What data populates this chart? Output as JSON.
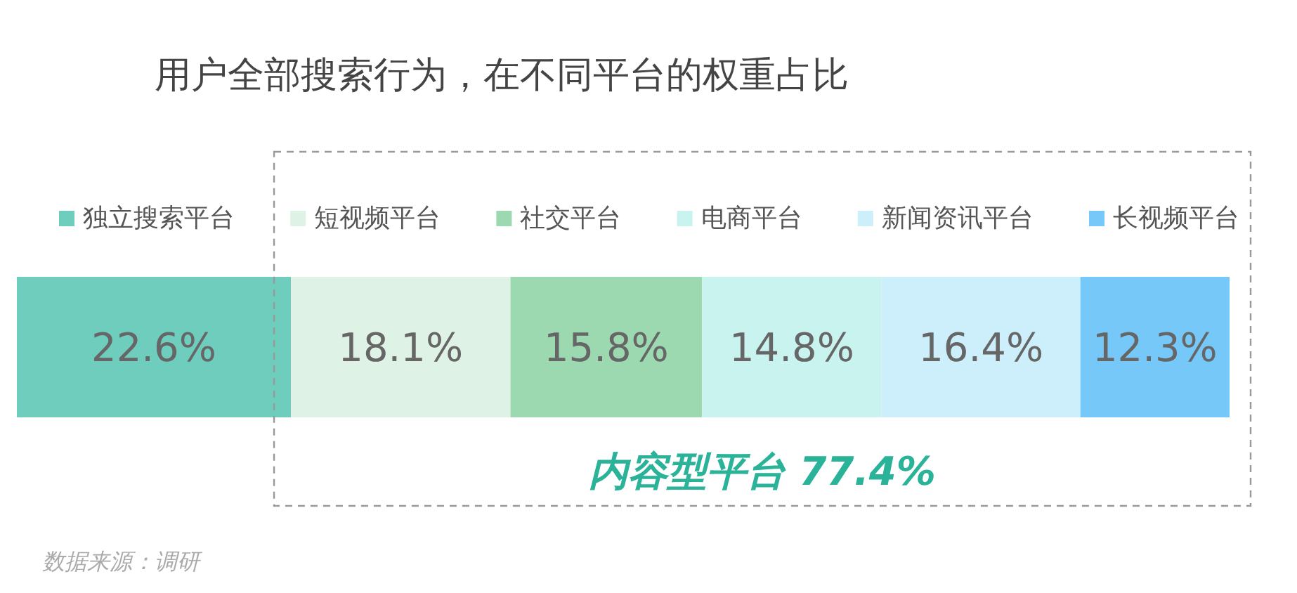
{
  "chart_data": {
    "type": "bar",
    "orientation": "horizontal",
    "stacked": true,
    "title": "用户全部搜索行为，在不同平台的权重占比",
    "categories": [
      null
    ],
    "series": [
      {
        "name": "独立搜索平台",
        "color": "#6fcdbd",
        "values": [
          22.6
        ],
        "value_labels": [
          "22.6%"
        ]
      },
      {
        "name": "短视频平台",
        "color": "#dff2e6",
        "values": [
          18.1
        ],
        "value_labels": [
          "18.1%"
        ]
      },
      {
        "name": "社交平台",
        "color": "#9cd9b1",
        "values": [
          15.8
        ],
        "value_labels": [
          "15.8%"
        ]
      },
      {
        "name": "电商平台",
        "color": "#c8f3ee",
        "values": [
          14.8
        ],
        "value_labels": [
          "14.8%"
        ]
      },
      {
        "name": "新闻资讯平台",
        "color": "#cdeefb",
        "values": [
          16.4
        ],
        "value_labels": [
          "16.4%"
        ]
      },
      {
        "name": "长视频平台",
        "color": "#75c8f8",
        "values": [
          12.3
        ],
        "value_labels": [
          "12.3%"
        ]
      }
    ],
    "legend": "top",
    "annotations": [
      "内容型平台 77.4%",
      "数据来源：调研"
    ]
  }
}
